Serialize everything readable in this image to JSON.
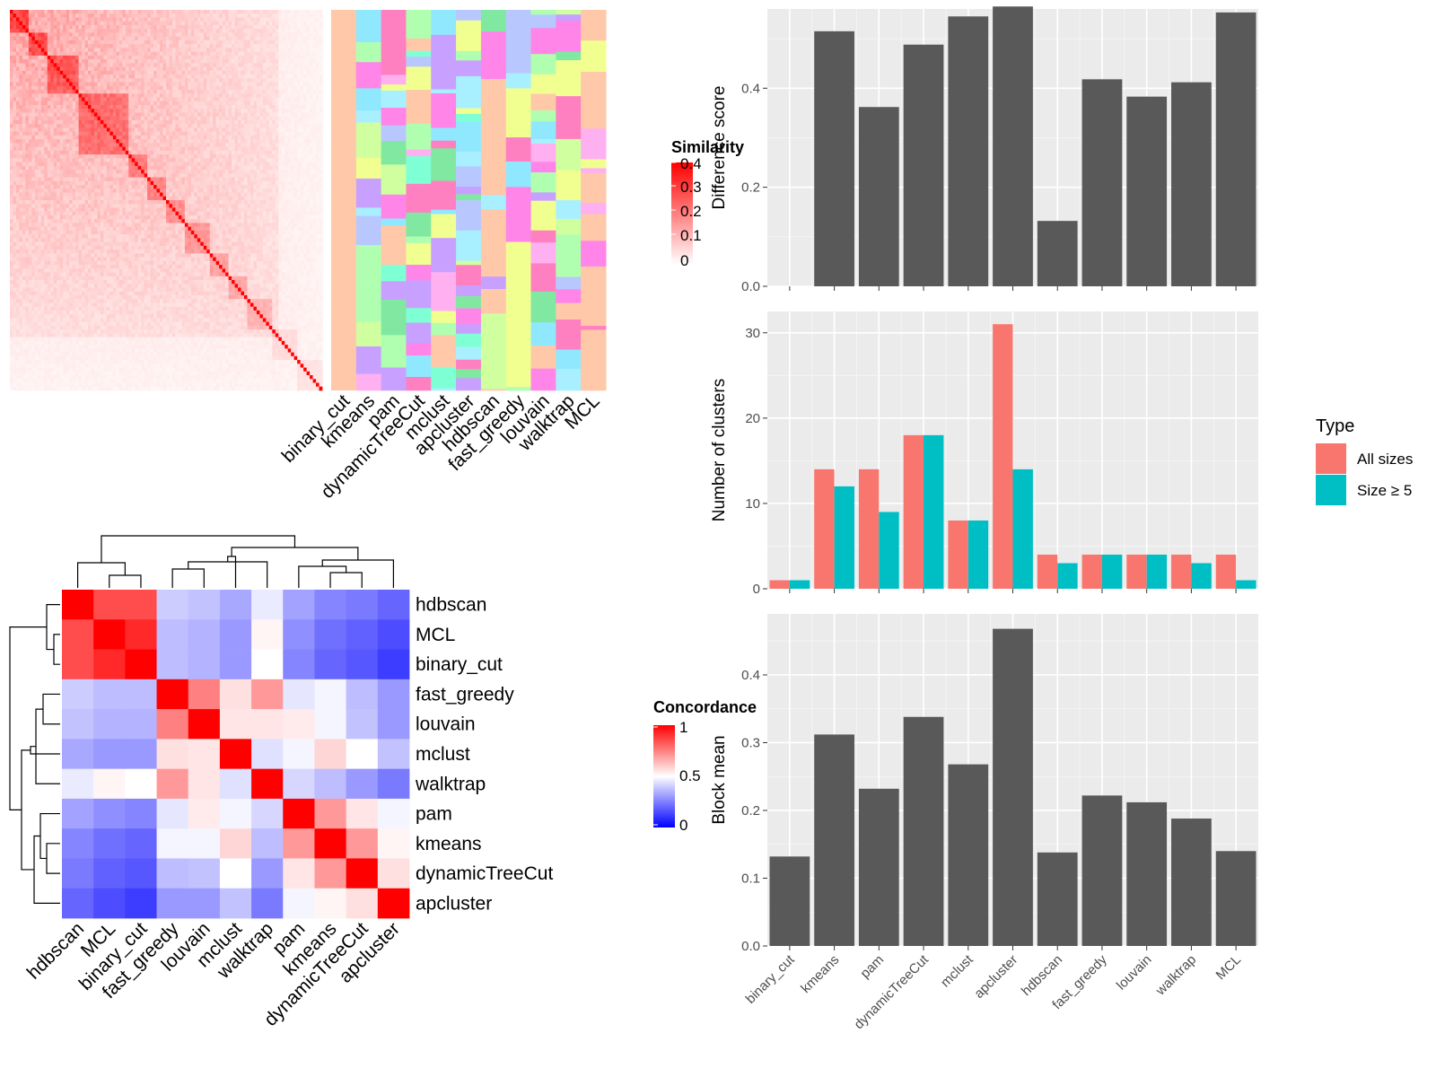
{
  "colors": {
    "panel_bg": "#ebebeb",
    "bar_fill": "#595959",
    "all_sizes": "#f8766d",
    "size_ge_5": "#00bfc4",
    "heat_high": "#ff0000",
    "heat_mid": "#ffffff",
    "heat_low": "#0000ff"
  },
  "chart_data": [
    {
      "type": "heatmap",
      "name": "similarity",
      "legend_title": "Similarity",
      "legend_ticks": [
        "0.4",
        "0.3",
        "0.2",
        "0.1",
        "0"
      ],
      "value_range": [
        0,
        0.4
      ]
    },
    {
      "type": "heatmap",
      "name": "cluster-assignments",
      "columns": [
        "binary_cut",
        "kmeans",
        "pam",
        "dynamicTreeCut",
        "mclust",
        "apcluster",
        "hdbscan",
        "fast_greedy",
        "louvain",
        "walktrap",
        "MCL"
      ]
    },
    {
      "type": "heatmap",
      "name": "concordance",
      "legend_title": "Concordance",
      "legend_ticks": [
        "1",
        "0.5",
        "0"
      ],
      "value_range": [
        0,
        1
      ],
      "rows": [
        "hdbscan",
        "MCL",
        "binary_cut",
        "fast_greedy",
        "louvain",
        "mclust",
        "walktrap",
        "pam",
        "kmeans",
        "dynamicTreeCut",
        "apcluster"
      ],
      "columns": [
        "hdbscan",
        "MCL",
        "binary_cut",
        "fast_greedy",
        "louvain",
        "mclust",
        "walktrap",
        "pam",
        "kmeans",
        "dynamicTreeCut",
        "apcluster"
      ],
      "values": [
        [
          1.0,
          0.85,
          0.85,
          0.4,
          0.38,
          0.33,
          0.46,
          0.32,
          0.26,
          0.24,
          0.2
        ],
        [
          0.85,
          1.0,
          0.92,
          0.37,
          0.35,
          0.3,
          0.52,
          0.28,
          0.22,
          0.19,
          0.15
        ],
        [
          0.85,
          0.92,
          1.0,
          0.37,
          0.35,
          0.3,
          0.5,
          0.26,
          0.2,
          0.17,
          0.12
        ],
        [
          0.4,
          0.37,
          0.37,
          1.0,
          0.75,
          0.56,
          0.7,
          0.45,
          0.48,
          0.37,
          0.3
        ],
        [
          0.38,
          0.35,
          0.35,
          0.75,
          1.0,
          0.55,
          0.55,
          0.54,
          0.48,
          0.38,
          0.3
        ],
        [
          0.33,
          0.3,
          0.3,
          0.56,
          0.55,
          1.0,
          0.44,
          0.48,
          0.58,
          0.5,
          0.38
        ],
        [
          0.46,
          0.52,
          0.5,
          0.7,
          0.55,
          0.44,
          1.0,
          0.42,
          0.37,
          0.3,
          0.24
        ],
        [
          0.32,
          0.28,
          0.26,
          0.45,
          0.54,
          0.48,
          0.42,
          1.0,
          0.7,
          0.55,
          0.48
        ],
        [
          0.26,
          0.22,
          0.2,
          0.48,
          0.48,
          0.58,
          0.37,
          0.7,
          1.0,
          0.7,
          0.52
        ],
        [
          0.24,
          0.19,
          0.17,
          0.37,
          0.38,
          0.5,
          0.3,
          0.55,
          0.7,
          1.0,
          0.56
        ],
        [
          0.2,
          0.15,
          0.12,
          0.3,
          0.3,
          0.38,
          0.24,
          0.48,
          0.52,
          0.56,
          1.0
        ]
      ]
    },
    {
      "type": "bar",
      "name": "difference-score",
      "categories": [
        "binary_cut",
        "kmeans",
        "pam",
        "dynamicTreeCut",
        "mclust",
        "apcluster",
        "hdbscan",
        "fast_greedy",
        "louvain",
        "walktrap",
        "MCL"
      ],
      "values": [
        0,
        0.515,
        0.362,
        0.488,
        0.545,
        0.565,
        0.132,
        0.418,
        0.383,
        0.412,
        0.553
      ],
      "ylabel": "Difference score",
      "ylim": [
        0,
        0.56
      ],
      "yticks": [
        0,
        0.2,
        0.4
      ],
      "ytick_labels": [
        "0.0",
        "0.2",
        "0.4"
      ],
      "grid": true
    },
    {
      "type": "bar",
      "name": "number-of-clusters",
      "categories": [
        "binary_cut",
        "kmeans",
        "pam",
        "dynamicTreeCut",
        "mclust",
        "apcluster",
        "hdbscan",
        "fast_greedy",
        "louvain",
        "walktrap",
        "MCL"
      ],
      "series": [
        {
          "name": "All sizes",
          "values": [
            1,
            14,
            14,
            18,
            8,
            31,
            4,
            4,
            4,
            4,
            4
          ]
        },
        {
          "name": "Size ≥ 5",
          "values": [
            1,
            12,
            9,
            18,
            8,
            14,
            3,
            4,
            4,
            3,
            1
          ]
        }
      ],
      "ylabel": "Number of clusters",
      "ylim": [
        0,
        32.5
      ],
      "yticks": [
        0,
        10,
        20,
        30
      ],
      "ytick_labels": [
        "0",
        "10",
        "20",
        "30"
      ],
      "legend_title": "Type",
      "legend": "right",
      "grid": true
    },
    {
      "type": "bar",
      "name": "block-mean",
      "categories": [
        "binary_cut",
        "kmeans",
        "pam",
        "dynamicTreeCut",
        "mclust",
        "apcluster",
        "hdbscan",
        "fast_greedy",
        "louvain",
        "walktrap",
        "MCL"
      ],
      "values": [
        0.132,
        0.312,
        0.232,
        0.338,
        0.268,
        0.468,
        0.138,
        0.222,
        0.212,
        0.188,
        0.14
      ],
      "ylabel": "Block mean",
      "ylim": [
        0,
        0.49
      ],
      "yticks": [
        0,
        0.1,
        0.2,
        0.3,
        0.4
      ],
      "ytick_labels": [
        "0.0",
        "0.1",
        "0.2",
        "0.3",
        "0.4"
      ],
      "grid": true
    }
  ]
}
